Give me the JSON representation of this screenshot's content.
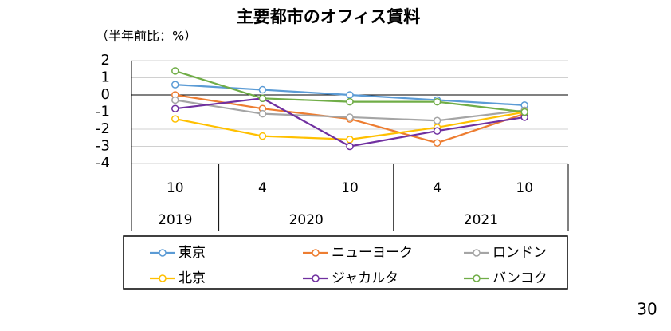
{
  "chart_data": {
    "type": "line",
    "title": "主要都市のオフィス賃料",
    "subtitle": "（半年前比：%）",
    "categories": [
      "10",
      "4",
      "10",
      "4",
      "10"
    ],
    "groups": [
      {
        "label": "2019",
        "count": 1
      },
      {
        "label": "2020",
        "count": 2
      },
      {
        "label": "2021",
        "count": 2
      }
    ],
    "ylim": [
      -4,
      2
    ],
    "yticks": [
      2,
      1,
      0,
      -1,
      -2,
      -3,
      -4
    ],
    "grid": true,
    "series": [
      {
        "name": "東京",
        "color": "#5b9bd5",
        "values": [
          0.6,
          0.3,
          0.0,
          -0.3,
          -0.6
        ]
      },
      {
        "name": "ニューヨーク",
        "color": "#ed7d31",
        "values": [
          0.0,
          -0.8,
          -1.4,
          -2.8,
          -1.1
        ]
      },
      {
        "name": "ロンドン",
        "color": "#a5a5a5",
        "values": [
          -0.3,
          -1.1,
          -1.3,
          -1.5,
          -0.9
        ]
      },
      {
        "name": "北京",
        "color": "#ffc000",
        "values": [
          -1.4,
          -2.4,
          -2.6,
          -1.9,
          -1.0
        ]
      },
      {
        "name": "ジャカルタ",
        "color": "#7030a0",
        "values": [
          -0.8,
          -0.2,
          -3.0,
          -2.1,
          -1.3
        ]
      },
      {
        "name": "バンコク",
        "color": "#70ad47",
        "values": [
          1.4,
          -0.2,
          -0.4,
          -0.4,
          -1.0
        ]
      }
    ]
  },
  "page_number": "30"
}
